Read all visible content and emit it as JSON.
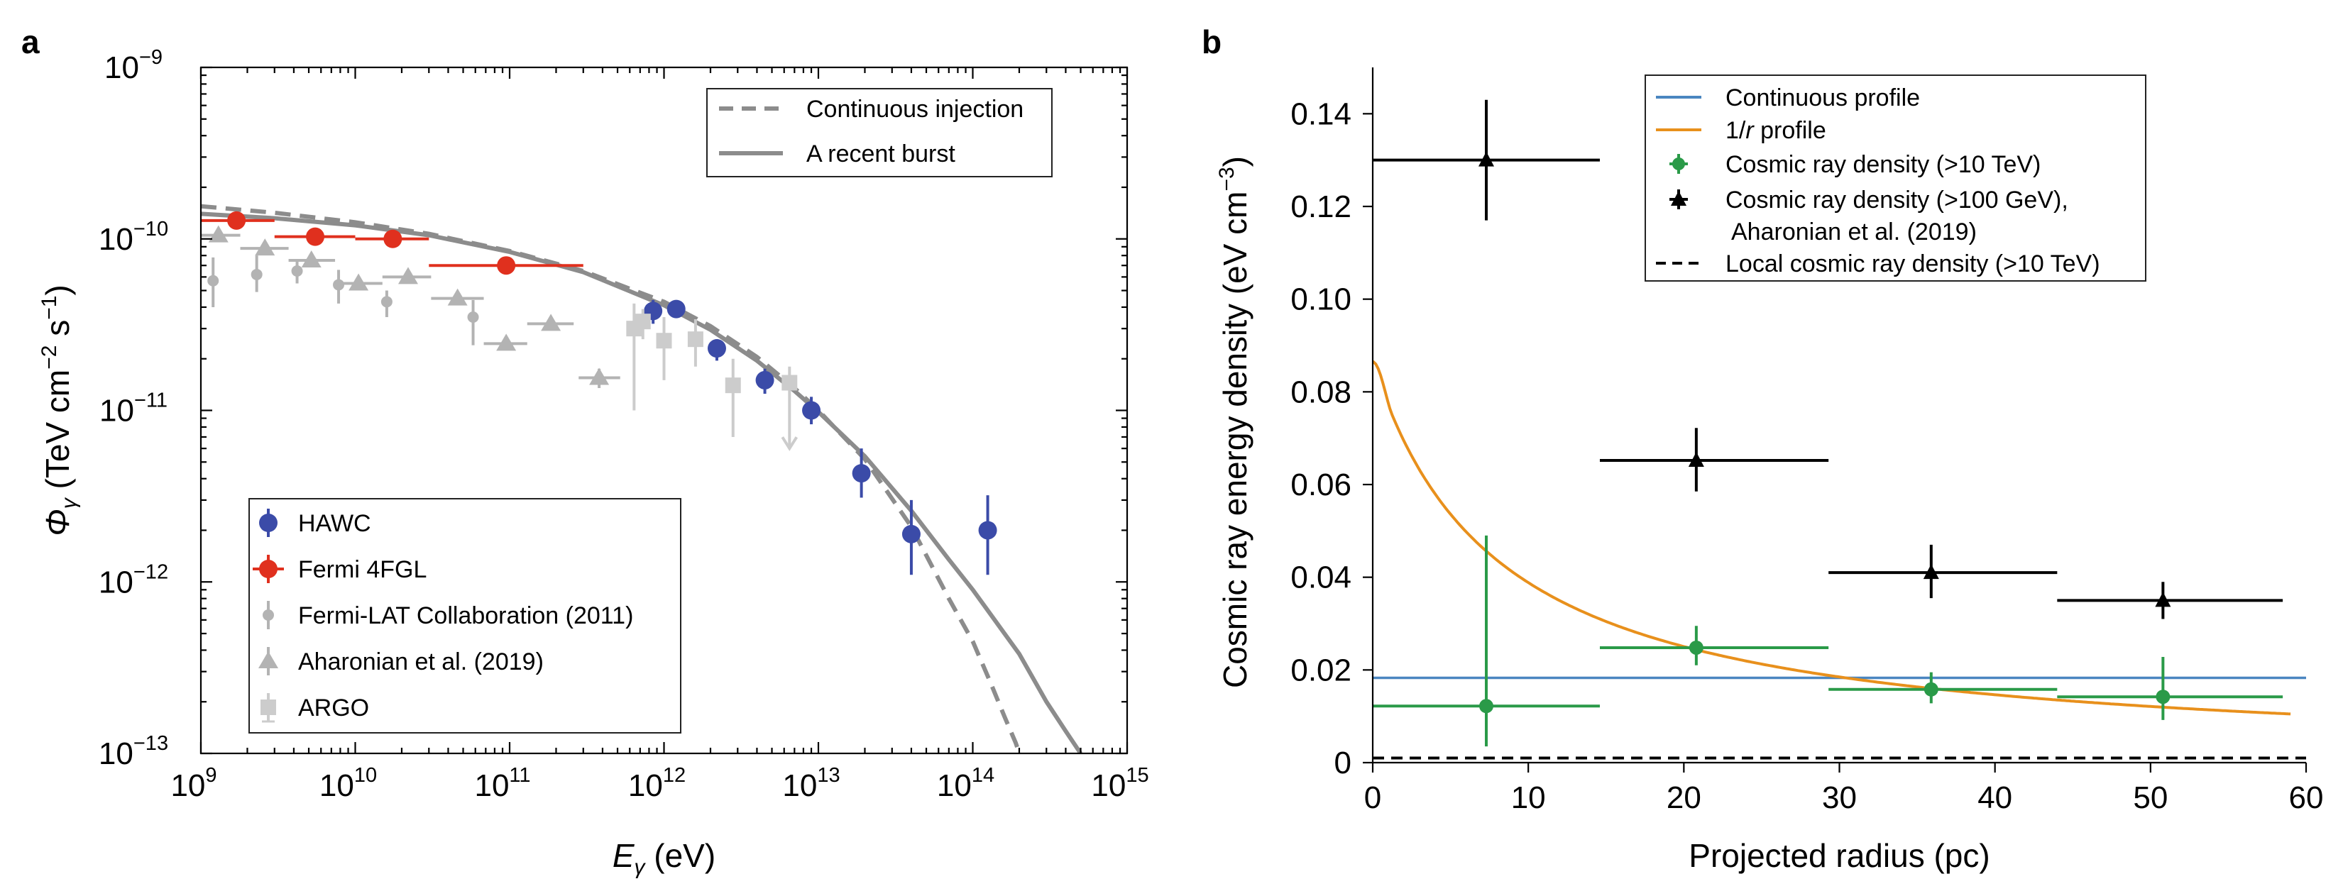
{
  "panel_a_letter": "a",
  "panel_b_letter": "b",
  "colors": {
    "hawc": "#3b4ba8",
    "fermi_4fgl": "#e0301e",
    "fermi_lat": "#b3b3b3",
    "aharonian_a": "#b3b3b3",
    "argo": "#cccccc",
    "model_line": "#8c8c8c",
    "continuous_profile": "#4a86c0",
    "one_over_r": "#e8901c",
    "cr_green": "#2a9a48",
    "cr_black": "#000000"
  },
  "chart_data": [
    {
      "type": "scatter",
      "panel": "a",
      "title": "",
      "xlabel": "E",
      "xlabel_sub": "γ",
      "xlabel_unit": " (eV)",
      "ylabel": "Φ",
      "ylabel_sub": "γ",
      "ylabel_unit": " (TeV cm",
      "ylabel_exp1": "−2",
      "ylabel_mid": " s",
      "ylabel_exp2": "−1",
      "ylabel_end": ")",
      "xscale": "log",
      "yscale": "log",
      "xlim": [
        1000000000.0,
        1000000000000000.0
      ],
      "ylim": [
        1e-13,
        1e-09
      ],
      "xticks": [
        {
          "value": 1000000000.0,
          "base": "10",
          "exp": "9"
        },
        {
          "value": 10000000000.0,
          "base": "10",
          "exp": "10"
        },
        {
          "value": 100000000000.0,
          "base": "10",
          "exp": "11"
        },
        {
          "value": 1000000000000.0,
          "base": "10",
          "exp": "12"
        },
        {
          "value": 10000000000000.0,
          "base": "10",
          "exp": "13"
        },
        {
          "value": 100000000000000.0,
          "base": "10",
          "exp": "14"
        },
        {
          "value": 1000000000000000.0,
          "base": "10",
          "exp": "15"
        }
      ],
      "yticks": [
        {
          "value": 1e-13,
          "base": "10",
          "exp": "−13"
        },
        {
          "value": 1e-12,
          "base": "10",
          "exp": "−12"
        },
        {
          "value": 1e-11,
          "base": "10",
          "exp": "−11"
        },
        {
          "value": 1e-10,
          "base": "10",
          "exp": "−10"
        },
        {
          "value": 1e-09,
          "base": "10",
          "exp": "−9"
        }
      ],
      "model_legend": {
        "placement": "top-right",
        "entries": [
          {
            "label": "Continuous injection",
            "style": "dashed"
          },
          {
            "label": "A recent burst",
            "style": "solid"
          }
        ]
      },
      "data_legend": {
        "placement": "lower-left",
        "entries": [
          {
            "label": "HAWC",
            "marker": "circle-big",
            "color_key": "hawc"
          },
          {
            "label": "Fermi 4FGL",
            "marker": "circle-big",
            "color_key": "fermi_4fgl"
          },
          {
            "label": "Fermi-LAT Collaboration (2011)",
            "marker": "circle-small",
            "color_key": "fermi_lat"
          },
          {
            "label": "Aharonian et al. (2019)",
            "marker": "triangle",
            "color_key": "aharonian_a"
          },
          {
            "label": "ARGO",
            "marker": "square",
            "color_key": "argo"
          }
        ]
      },
      "series": [
        {
          "name": "Continuous injection",
          "kind": "line",
          "dash": true,
          "color_key": "model_line",
          "x": [
            1000000000.0,
            3000000000.0,
            10000000000.0,
            30000000000.0,
            100000000000.0,
            300000000000.0,
            1000000000000.0,
            2000000000000.0,
            4000000000000.0,
            7000000000000.0,
            10000000000000.0,
            20000000000000.0,
            40000000000000.0,
            70000000000000.0,
            100000000000000.0,
            130000000000000.0,
            160000000000000.0,
            190000000000000.0,
            200000000000000.0
          ],
          "y": [
            1.55e-10,
            1.42e-10,
            1.25e-10,
            1.07e-10,
            8.5e-11,
            6.5e-11,
            4.3e-11,
            3.1e-11,
            2.05e-11,
            1.35e-11,
            1e-11,
            5.2e-12,
            2.1e-12,
            8e-13,
            4.5e-13,
            2.6e-13,
            1.65e-13,
            1.15e-13,
            1e-13
          ]
        },
        {
          "name": "A recent burst",
          "kind": "line",
          "dash": false,
          "color_key": "model_line",
          "x": [
            1000000000.0,
            3000000000.0,
            10000000000.0,
            30000000000.0,
            100000000000.0,
            300000000000.0,
            1000000000000.0,
            2000000000000.0,
            4000000000000.0,
            7000000000000.0,
            10000000000000.0,
            20000000000000.0,
            40000000000000.0,
            70000000000000.0,
            100000000000000.0,
            200000000000000.0,
            300000000000000.0,
            400000000000000.0,
            500000000000000.0
          ],
          "y": [
            1.4e-10,
            1.32e-10,
            1.2e-10,
            1.05e-10,
            8.4e-11,
            6.4e-11,
            4.1e-11,
            2.95e-11,
            1.95e-11,
            1.3e-11,
            9.8e-12,
            5.4e-12,
            2.6e-12,
            1.35e-12,
            9e-13,
            3.8e-13,
            2e-13,
            1.35e-13,
            1e-13
          ]
        },
        {
          "name": "HAWC",
          "kind": "points",
          "marker": "circle-big",
          "color_key": "hawc",
          "points": [
            {
              "x": 850000000000.0,
              "y": 3.8e-11,
              "ylo": 3.2e-11,
              "yhi": 4.4e-11
            },
            {
              "x": 1200000000000.0,
              "y": 3.9e-11,
              "ylo": 3.5e-11,
              "yhi": 4.3e-11
            },
            {
              "x": 2200000000000.0,
              "y": 2.3e-11,
              "ylo": 1.95e-11,
              "yhi": 2.6e-11
            },
            {
              "x": 4500000000000.0,
              "y": 1.5e-11,
              "ylo": 1.25e-11,
              "yhi": 1.75e-11
            },
            {
              "x": 9000000000000.0,
              "y": 1e-11,
              "ylo": 8.3e-12,
              "yhi": 1.2e-11
            },
            {
              "x": 19000000000000.0,
              "y": 4.3e-12,
              "ylo": 3.1e-12,
              "yhi": 6e-12
            },
            {
              "x": 40000000000000.0,
              "y": 1.9e-12,
              "ylo": 1.1e-12,
              "yhi": 3e-12
            },
            {
              "x": 125000000000000.0,
              "y": 2e-12,
              "ylo": 1.1e-12,
              "yhi": 3.2e-12
            }
          ]
        },
        {
          "name": "Fermi 4FGL",
          "kind": "points",
          "marker": "circle-big",
          "color_key": "fermi_4fgl",
          "points": [
            {
              "x": 1700000000.0,
              "y": 1.28e-10,
              "xlo": 1000000000.0,
              "xhi": 3000000000.0,
              "ylo": 1.22e-10,
              "yhi": 1.34e-10
            },
            {
              "x": 5500000000.0,
              "y": 1.03e-10,
              "xlo": 3000000000.0,
              "xhi": 10000000000.0,
              "ylo": 9.9e-11,
              "yhi": 1.07e-10
            },
            {
              "x": 17500000000.0,
              "y": 1e-10,
              "xlo": 10000000000.0,
              "xhi": 30000000000.0,
              "ylo": 9.5e-11,
              "yhi": 1.05e-10
            },
            {
              "x": 95000000000.0,
              "y": 7e-11,
              "xlo": 30000000000.0,
              "xhi": 300000000000.0,
              "ylo": 6.6e-11,
              "yhi": 7.4e-11
            }
          ]
        },
        {
          "name": "Fermi-LAT Collaboration (2011)",
          "kind": "points",
          "marker": "circle-small",
          "color_key": "fermi_lat",
          "points": [
            {
              "x": 1200000000.0,
              "y": 5.7e-11,
              "ylo": 4e-11,
              "yhi": 7.8e-11
            },
            {
              "x": 2300000000.0,
              "y": 6.2e-11,
              "ylo": 4.9e-11,
              "yhi": 8e-11
            },
            {
              "x": 4200000000.0,
              "y": 6.5e-11,
              "ylo": 5.5e-11,
              "yhi": 7.6e-11
            },
            {
              "x": 7800000000.0,
              "y": 5.4e-11,
              "ylo": 4.2e-11,
              "yhi": 6.6e-11
            },
            {
              "x": 16000000000.0,
              "y": 4.3e-11,
              "ylo": 3.5e-11,
              "yhi": 5e-11
            },
            {
              "x": 58000000000.0,
              "y": 3.5e-11,
              "ylo": 2.4e-11,
              "yhi": 4.4e-11
            }
          ]
        },
        {
          "name": "Aharonian et al. (2019)",
          "kind": "points",
          "marker": "triangle",
          "color_key": "aharonian_a",
          "points": [
            {
              "x": 1300000000.0,
              "y": 1.05e-10,
              "xlo": 1000000000.0,
              "xhi": 1800000000.0
            },
            {
              "x": 2600000000.0,
              "y": 8.8e-11,
              "xlo": 1800000000.0,
              "xhi": 3700000000.0
            },
            {
              "x": 5200000000.0,
              "y": 7.5e-11,
              "xlo": 3700000000.0,
              "xhi": 7400000000.0
            },
            {
              "x": 10500000000.0,
              "y": 5.5e-11,
              "xlo": 7400000000.0,
              "xhi": 15000000000.0
            },
            {
              "x": 22000000000.0,
              "y": 6e-11,
              "xlo": 15000000000.0,
              "xhi": 31000000000.0
            },
            {
              "x": 46000000000.0,
              "y": 4.5e-11,
              "xlo": 31000000000.0,
              "xhi": 68000000000.0
            },
            {
              "x": 95000000000.0,
              "y": 2.45e-11,
              "xlo": 68000000000.0,
              "xhi": 130000000000.0
            },
            {
              "x": 185000000000.0,
              "y": 3.2e-11,
              "xlo": 130000000000.0,
              "xhi": 260000000000.0
            },
            {
              "x": 380000000000.0,
              "y": 1.55e-11,
              "xlo": 280000000000.0,
              "xhi": 520000000000.0,
              "ylo": 1.35e-11,
              "yhi": 1.75e-11
            }
          ]
        },
        {
          "name": "ARGO",
          "kind": "points",
          "marker": "square",
          "color_key": "argo",
          "points": [
            {
              "x": 640000000000.0,
              "y": 3e-11,
              "ylo": 1e-11,
              "yhi": 4.2e-11
            },
            {
              "x": 1000000000000.0,
              "y": 2.55e-11,
              "ylo": 1.5e-11,
              "yhi": 3.5e-11
            },
            {
              "x": 1600000000000.0,
              "y": 2.6e-11,
              "ylo": 1.8e-11,
              "yhi": 3.4e-11
            },
            {
              "x": 2800000000000.0,
              "y": 1.4e-11,
              "ylo": 7e-12,
              "yhi": 2e-11
            },
            {
              "x": 6500000000000.0,
              "y": 1.45e-11,
              "ylo": 6e-12,
              "yhi": 1.8e-11,
              "upper_limit": true
            },
            {
              "x": 730000000000.0,
              "y": 3.3e-11,
              "ylo": 2.6e-11,
              "yhi": 3.9e-11
            }
          ]
        }
      ]
    },
    {
      "type": "scatter",
      "panel": "b",
      "title": "",
      "xlabel": "Projected radius (pc)",
      "ylabel": "Cosmic ray energy density (eV cm",
      "ylabel_exp": "−3",
      "ylabel_end": ")",
      "xlim": [
        0,
        60
      ],
      "ylim": [
        0,
        0.15
      ],
      "xticks": [
        {
          "value": 0,
          "label": "0"
        },
        {
          "value": 10,
          "label": "10"
        },
        {
          "value": 20,
          "label": "20"
        },
        {
          "value": 30,
          "label": "30"
        },
        {
          "value": 40,
          "label": "40"
        },
        {
          "value": 50,
          "label": "50"
        },
        {
          "value": 60,
          "label": "60"
        }
      ],
      "yticks": [
        {
          "value": 0,
          "label": "0"
        },
        {
          "value": 0.02,
          "label": "0.02"
        },
        {
          "value": 0.04,
          "label": "0.04"
        },
        {
          "value": 0.06,
          "label": "0.06"
        },
        {
          "value": 0.08,
          "label": "0.08"
        },
        {
          "value": 0.1,
          "label": "0.10"
        },
        {
          "value": 0.12,
          "label": "0.12"
        },
        {
          "value": 0.14,
          "label": "0.14"
        }
      ],
      "legend": {
        "placement": "top-right",
        "entries": [
          {
            "label": "Continuous profile",
            "marker": "line",
            "color_key": "continuous_profile"
          },
          {
            "label": "1/",
            "label_italic": "r",
            "label_end": " profile",
            "marker": "line",
            "color_key": "one_over_r"
          },
          {
            "label": "Cosmic ray density (>10 TeV)",
            "marker": "circle-err",
            "color_key": "cr_green"
          },
          {
            "label": "Cosmic ray density (>100 GeV),",
            "label2": "Aharonian et al. (2019)",
            "marker": "triangle-err",
            "color_key": "cr_black"
          },
          {
            "label": "Local cosmic ray density (>10 TeV)",
            "marker": "dashed",
            "color_key": "cr_black"
          }
        ]
      },
      "series": [
        {
          "name": "Continuous profile",
          "kind": "line",
          "color_key": "continuous_profile",
          "x": [
            0,
            60
          ],
          "y": [
            0.0183,
            0.0183
          ]
        },
        {
          "name": "1/r profile",
          "kind": "function-1-over-r",
          "color_key": "one_over_r",
          "coefficient": 0.535,
          "x_start": 0.2,
          "x_end": 59,
          "y_at_zero": 0.0865
        },
        {
          "name": "Local cosmic ray density (>10 TeV)",
          "kind": "line",
          "dash": true,
          "color_key": "cr_black",
          "x": [
            0,
            60
          ],
          "y": [
            0.001,
            0.001
          ]
        },
        {
          "name": "Cosmic ray density (>10 TeV)",
          "kind": "points",
          "marker": "circle",
          "color_key": "cr_green",
          "points": [
            {
              "x": 7.3,
              "y": 0.0122,
              "xlo": 0,
              "xhi": 14.6,
              "ylo": 0.0035,
              "yhi": 0.049
            },
            {
              "x": 20.8,
              "y": 0.0248,
              "xlo": 14.6,
              "xhi": 29.3,
              "ylo": 0.021,
              "yhi": 0.0295
            },
            {
              "x": 35.9,
              "y": 0.0158,
              "xlo": 29.3,
              "xhi": 44,
              "ylo": 0.0128,
              "yhi": 0.0195
            },
            {
              "x": 50.8,
              "y": 0.0142,
              "xlo": 44,
              "xhi": 58.5,
              "ylo": 0.0092,
              "yhi": 0.0228
            }
          ]
        },
        {
          "name": "Cosmic ray density (>100 GeV), Aharonian et al. (2019)",
          "kind": "points",
          "marker": "triangle",
          "color_key": "cr_black",
          "points": [
            {
              "x": 7.3,
              "y": 0.13,
              "xlo": 0,
              "xhi": 14.6,
              "ylo": 0.117,
              "yhi": 0.143
            },
            {
              "x": 20.8,
              "y": 0.0652,
              "xlo": 14.6,
              "xhi": 29.3,
              "ylo": 0.0585,
              "yhi": 0.0722
            },
            {
              "x": 35.9,
              "y": 0.041,
              "xlo": 29.3,
              "xhi": 44,
              "ylo": 0.0355,
              "yhi": 0.047
            },
            {
              "x": 50.8,
              "y": 0.035,
              "xlo": 44,
              "xhi": 58.5,
              "ylo": 0.031,
              "yhi": 0.039
            }
          ]
        }
      ]
    }
  ]
}
